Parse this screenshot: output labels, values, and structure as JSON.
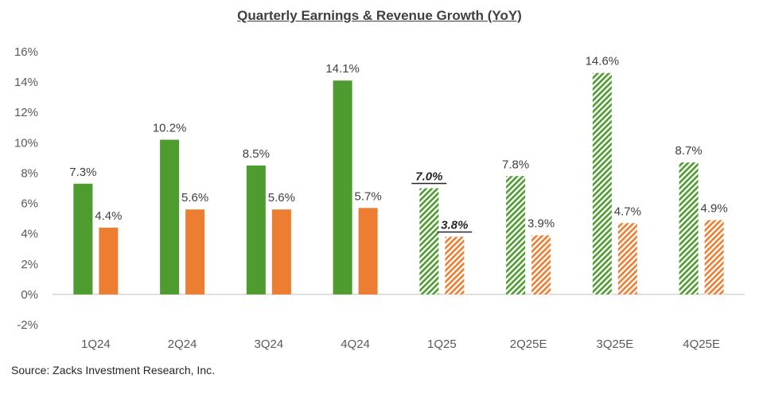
{
  "chart_data": {
    "type": "bar",
    "title": "Quarterly Earnings & Revenue Growth (YoY)",
    "categories": [
      "1Q24",
      "2Q24",
      "3Q24",
      "4Q24",
      "1Q25",
      "2Q25E",
      "3Q25E",
      "4Q25E"
    ],
    "series": [
      {
        "color": "#4e9b2f",
        "values": [
          7.3,
          10.2,
          8.5,
          14.1,
          7.0,
          7.8,
          14.6,
          8.7
        ],
        "labels": [
          "7.3%",
          "10.2%",
          "8.5%",
          "14.1%",
          "7.0%",
          "7.8%",
          "14.6%",
          "8.7%"
        ]
      },
      {
        "color": "#ed7d31",
        "values": [
          4.4,
          5.6,
          5.6,
          5.7,
          3.8,
          3.9,
          4.7,
          4.9
        ],
        "labels": [
          "4.4%",
          "5.6%",
          "5.6%",
          "5.7%",
          "3.8%",
          "3.9%",
          "4.7%",
          "4.9%"
        ]
      }
    ],
    "estimate_categories": [
      "1Q25",
      "2Q25E",
      "3Q25E",
      "4Q25E"
    ],
    "emphasized_labels_category": "1Q25",
    "ylim": [
      -2,
      16
    ],
    "yticks": [
      -2,
      0,
      2,
      4,
      6,
      8,
      10,
      12,
      14,
      16
    ],
    "ytick_labels": [
      "-2%",
      "0%",
      "2%",
      "4%",
      "6%",
      "8%",
      "10%",
      "12%",
      "14%",
      "16%"
    ],
    "grid": false,
    "legend": "none"
  },
  "source": "Source: Zacks Investment Research, Inc."
}
